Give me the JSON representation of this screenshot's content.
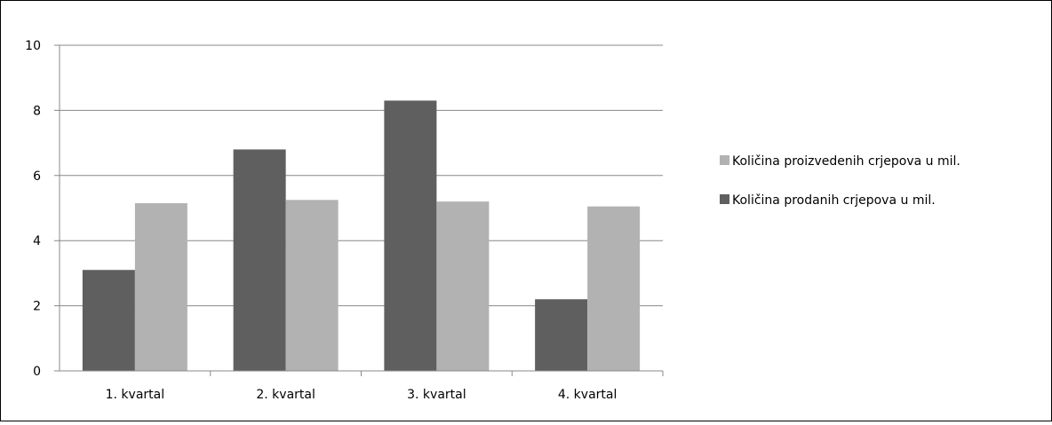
{
  "colors": {
    "background": "#ffffff",
    "border": "#000000",
    "gridline": "#888888",
    "axis": "#888888",
    "series_produced": "#b2b2b2",
    "series_sold": "#5f5f5f"
  },
  "chart_data": {
    "type": "bar",
    "title": "",
    "xlabel": "",
    "ylabel": "",
    "categories": [
      "1. kvartal",
      "2. kvartal",
      "3. kvartal",
      "4. kvartal"
    ],
    "series": [
      {
        "name": "Količina prodanih crjepova u mil.",
        "color": "#5f5f5f",
        "values": [
          3.1,
          6.8,
          8.3,
          2.2
        ]
      },
      {
        "name": "Količina proizvedenih crjepova u mil.",
        "color": "#b2b2b2",
        "values": [
          5.15,
          5.25,
          5.2,
          5.05
        ]
      }
    ],
    "ylim": [
      0,
      10
    ],
    "yticks": [
      0,
      2,
      4,
      6,
      8,
      10
    ],
    "ytick_labels": [
      "0",
      "2",
      "4",
      "6",
      "8",
      "10"
    ],
    "grid": true,
    "legend_placement": "right",
    "legend": [
      {
        "label": "Količina proizvedenih crjepova u mil.",
        "color": "#b2b2b2"
      },
      {
        "label": "Količina prodanih crjepova u mil.",
        "color": "#5f5f5f"
      }
    ]
  }
}
